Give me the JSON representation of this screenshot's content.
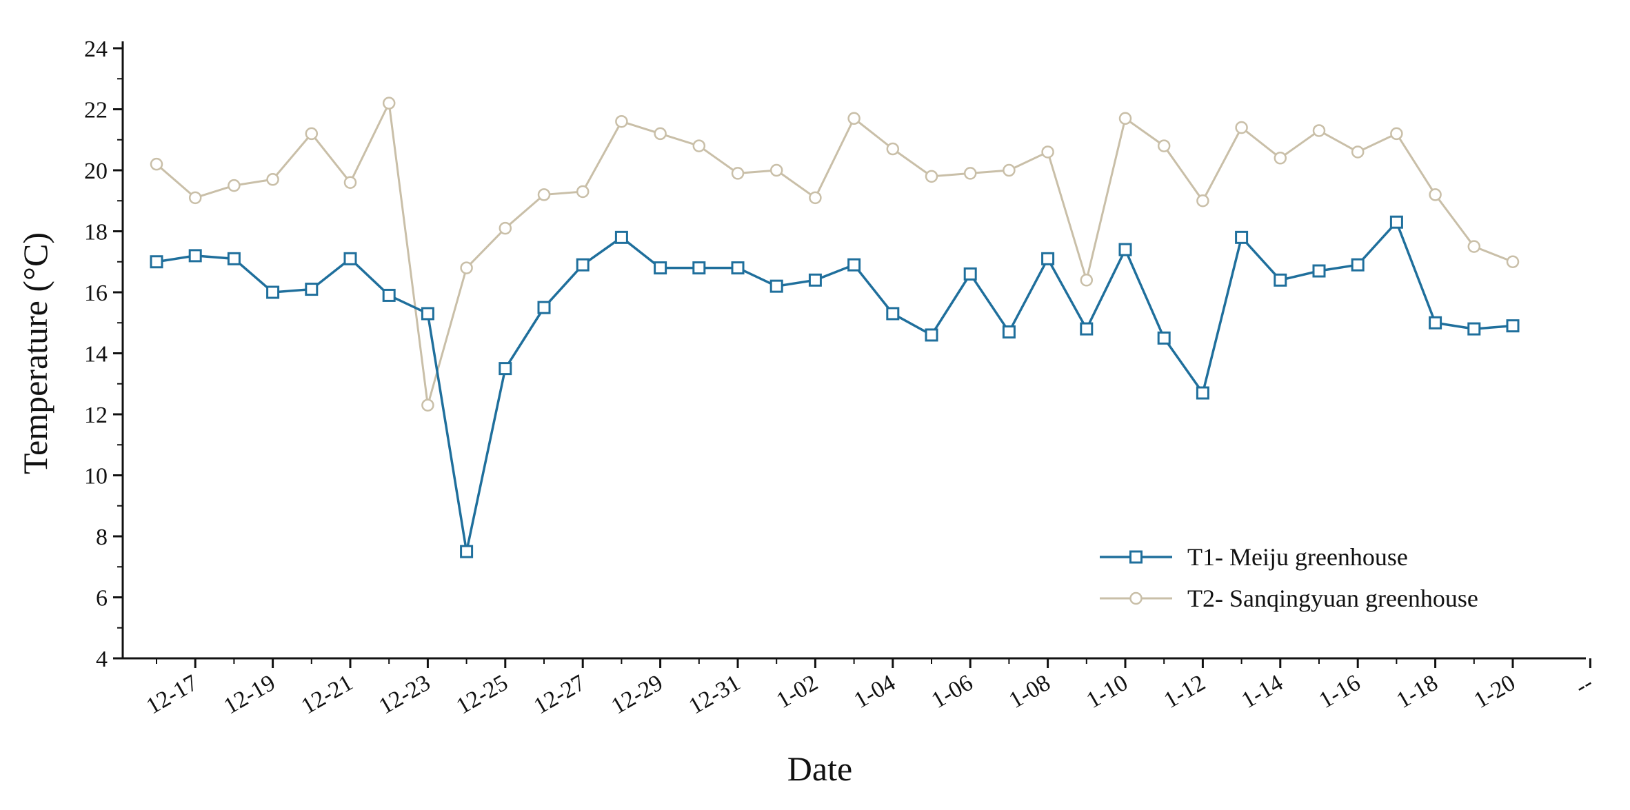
{
  "chart_data": {
    "type": "line",
    "title": "",
    "xlabel": "Date",
    "ylabel": "Temperature (°C)",
    "ylim": [
      4,
      24
    ],
    "yticks": [
      4,
      6,
      8,
      10,
      12,
      14,
      16,
      18,
      20,
      22,
      24
    ],
    "grid": false,
    "legend_position": "bottom-right",
    "x": [
      "12-16",
      "12-17",
      "12-18",
      "12-19",
      "12-20",
      "12-21",
      "12-22",
      "12-23",
      "12-24",
      "12-25",
      "12-26",
      "12-27",
      "12-28",
      "12-29",
      "12-30",
      "12-31",
      "1-01",
      "1-02",
      "1-03",
      "1-04",
      "1-05",
      "1-06",
      "1-07",
      "1-08",
      "1-09",
      "1-10",
      "1-11",
      "1-12",
      "1-13",
      "1-14",
      "1-15",
      "1-16",
      "1-17",
      "1-18",
      "1-19",
      "1-20"
    ],
    "x_tick_labels": [
      "12-17",
      "12-19",
      "12-21",
      "12-23",
      "12-25",
      "12-27",
      "12-29",
      "12-31",
      "1-02",
      "1-04",
      "1-06",
      "1-08",
      "1-10",
      "1-12",
      "1-14",
      "1-16",
      "1-18",
      "1-20",
      "--"
    ],
    "series": [
      {
        "name": "T1- Meiju greenhouse",
        "color": "#1f6f9c",
        "marker": "square",
        "values": [
          17.0,
          17.2,
          17.1,
          16.0,
          16.1,
          17.1,
          15.9,
          15.3,
          7.5,
          13.5,
          15.5,
          16.9,
          17.8,
          16.8,
          16.8,
          16.8,
          16.2,
          16.4,
          16.9,
          15.3,
          14.6,
          16.6,
          14.7,
          17.1,
          14.8,
          17.4,
          14.5,
          12.7,
          17.8,
          16.4,
          16.7,
          16.9,
          18.3,
          15.0,
          14.8,
          14.9
        ]
      },
      {
        "name": "T2- Sanqingyuan greenhouse",
        "color": "#c9bfa8",
        "marker": "circle",
        "values": [
          20.2,
          19.1,
          19.5,
          19.7,
          21.2,
          19.6,
          22.2,
          12.3,
          16.8,
          18.1,
          19.2,
          19.3,
          21.6,
          21.2,
          20.8,
          19.9,
          20.0,
          19.1,
          21.7,
          20.7,
          19.8,
          19.9,
          20.0,
          20.6,
          16.4,
          21.7,
          20.8,
          19.0,
          21.4,
          20.4,
          21.3,
          20.6,
          21.2,
          19.2,
          17.5,
          17.0
        ]
      }
    ]
  }
}
